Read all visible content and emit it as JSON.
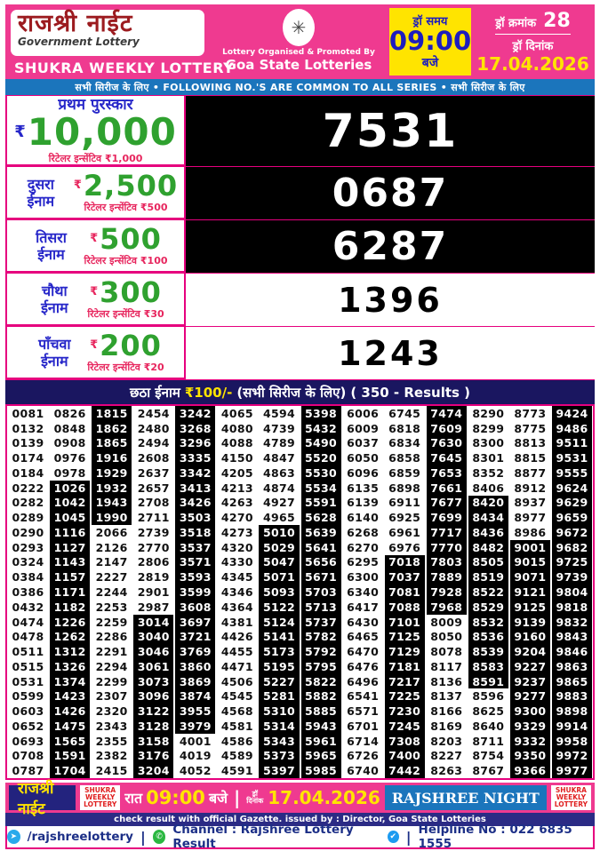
{
  "header": {
    "title": "राजश्री नाईट",
    "subtitle": "Government Lottery",
    "weekly": "SHUKRA WEEKLY LOTTERY",
    "organised_by": "Lottery Organised & Promoted By",
    "organisation": "Goa State Lotteries",
    "draw_time_label": "ड्रॉ समय",
    "draw_time": "09:00",
    "draw_time_suffix": "बजे",
    "draw_no_label": "ड्रॉ क्रमांक",
    "draw_no": "28",
    "draw_date_label": "ड्रॉ दिनांक",
    "draw_date": "17.04.2026"
  },
  "series_banner": "सभी सिरीज के लिए  •  FOLLOWING NO.'S ARE COMMON TO ALL SERIES  • सभी सिरीज के लिए",
  "currency": "₹",
  "prizes": [
    {
      "label": "प्रथम पुरस्कार",
      "amount": "10,000",
      "incentive": "रिटेलर इन्सेंटिव ₹1,000",
      "number": "7531",
      "style": "dark"
    },
    {
      "label": "दुसरा ईनाम",
      "amount": "2,500",
      "incentive": "रिटेलर इन्सेंटिव ₹500",
      "number": "0687",
      "style": "dark"
    },
    {
      "label": "तिसरा ईनाम",
      "amount": "500",
      "incentive": "रिटेलर इन्सेंटिव ₹100",
      "number": "6287",
      "style": "dark"
    },
    {
      "label": "चौथा ईनाम",
      "amount": "300",
      "incentive": "रिटेलर इन्सेंटिव ₹30",
      "number": "1396",
      "style": "light"
    },
    {
      "label": "पाँचवा ईनाम",
      "amount": "200",
      "incentive": "रिटेलर इन्सेंटिव ₹20",
      "number": "1243",
      "style": "light"
    }
  ],
  "sixth_prize": {
    "prefix": "छठा ईनाम",
    "amount": "₹100/-",
    "series_note": "(सभी सिरीज के लिए)",
    "results_note": "( 350 - Results )"
  },
  "results": {
    "rows": [
      [
        "0081",
        "0826",
        "1815",
        "2454",
        "3242",
        "4065",
        "4594",
        "5398",
        "6006",
        "6745",
        "7474",
        "8290",
        "8773",
        "9424"
      ],
      [
        "0132",
        "0848",
        "1862",
        "2480",
        "3268",
        "4080",
        "4739",
        "5432",
        "6009",
        "6818",
        "7609",
        "8299",
        "8775",
        "9486"
      ],
      [
        "0139",
        "0908",
        "1865",
        "2494",
        "3296",
        "4088",
        "4789",
        "5490",
        "6037",
        "6834",
        "7630",
        "8300",
        "8813",
        "9511"
      ],
      [
        "0174",
        "0976",
        "1916",
        "2608",
        "3335",
        "4150",
        "4847",
        "5520",
        "6050",
        "6858",
        "7645",
        "8301",
        "8815",
        "9531"
      ],
      [
        "0184",
        "0978",
        "1929",
        "2637",
        "3342",
        "4205",
        "4863",
        "5530",
        "6096",
        "6859",
        "7653",
        "8352",
        "8877",
        "9555"
      ],
      [
        "0222",
        "1026",
        "1932",
        "2657",
        "3413",
        "4213",
        "4874",
        "5534",
        "6135",
        "6898",
        "7661",
        "8406",
        "8912",
        "9624"
      ],
      [
        "0282",
        "1042",
        "1943",
        "2708",
        "3426",
        "4263",
        "4927",
        "5591",
        "6139",
        "6911",
        "7677",
        "8420",
        "8937",
        "9629"
      ],
      [
        "0289",
        "1045",
        "1990",
        "2711",
        "3503",
        "4270",
        "4965",
        "5628",
        "6140",
        "6925",
        "7699",
        "8434",
        "8977",
        "9659"
      ],
      [
        "0290",
        "1116",
        "2066",
        "2739",
        "3518",
        "4273",
        "5010",
        "5639",
        "6268",
        "6961",
        "7717",
        "8436",
        "8986",
        "9672"
      ],
      [
        "0293",
        "1127",
        "2126",
        "2770",
        "3537",
        "4320",
        "5029",
        "5641",
        "6270",
        "6976",
        "7770",
        "8482",
        "9001",
        "9682"
      ],
      [
        "0324",
        "1143",
        "2147",
        "2806",
        "3571",
        "4330",
        "5047",
        "5656",
        "6295",
        "7018",
        "7803",
        "8505",
        "9015",
        "9725"
      ],
      [
        "0384",
        "1157",
        "2227",
        "2819",
        "3593",
        "4345",
        "5071",
        "5671",
        "6300",
        "7037",
        "7889",
        "8519",
        "9071",
        "9739"
      ],
      [
        "0386",
        "1171",
        "2244",
        "2901",
        "3599",
        "4346",
        "5093",
        "5703",
        "6340",
        "7081",
        "7928",
        "8522",
        "9121",
        "9804"
      ],
      [
        "0432",
        "1182",
        "2253",
        "2987",
        "3608",
        "4364",
        "5122",
        "5713",
        "6417",
        "7088",
        "7968",
        "8529",
        "9125",
        "9818"
      ],
      [
        "0474",
        "1226",
        "2259",
        "3014",
        "3697",
        "4381",
        "5124",
        "5737",
        "6430",
        "7101",
        "8009",
        "8532",
        "9139",
        "9832"
      ],
      [
        "0478",
        "1262",
        "2286",
        "3040",
        "3721",
        "4426",
        "5141",
        "5782",
        "6465",
        "7125",
        "8050",
        "8536",
        "9160",
        "9843"
      ],
      [
        "0511",
        "1312",
        "2291",
        "3046",
        "3769",
        "4455",
        "5173",
        "5792",
        "6470",
        "7129",
        "8078",
        "8539",
        "9204",
        "9846"
      ],
      [
        "0515",
        "1326",
        "2294",
        "3061",
        "3860",
        "4471",
        "5195",
        "5795",
        "6476",
        "7181",
        "8117",
        "8583",
        "9227",
        "9863"
      ],
      [
        "0531",
        "1374",
        "2299",
        "3073",
        "3869",
        "4506",
        "5227",
        "5822",
        "6496",
        "7217",
        "8136",
        "8591",
        "9237",
        "9865"
      ],
      [
        "0599",
        "1423",
        "2307",
        "3096",
        "3874",
        "4545",
        "5281",
        "5882",
        "6541",
        "7225",
        "8137",
        "8596",
        "9277",
        "9883"
      ],
      [
        "0603",
        "1426",
        "2320",
        "3122",
        "3955",
        "4568",
        "5310",
        "5885",
        "6571",
        "7230",
        "8166",
        "8625",
        "9300",
        "9898"
      ],
      [
        "0652",
        "1475",
        "2343",
        "3128",
        "3979",
        "4581",
        "5314",
        "5943",
        "6701",
        "7245",
        "8169",
        "8640",
        "9329",
        "9914"
      ],
      [
        "0693",
        "1565",
        "2355",
        "3158",
        "4001",
        "4586",
        "5343",
        "5961",
        "6714",
        "7308",
        "8203",
        "8711",
        "9332",
        "9958"
      ],
      [
        "0708",
        "1591",
        "2382",
        "3176",
        "4019",
        "4589",
        "5373",
        "5965",
        "6726",
        "7400",
        "8227",
        "8754",
        "9350",
        "9972"
      ],
      [
        "0787",
        "1704",
        "2415",
        "3204",
        "4052",
        "4591",
        "5397",
        "5985",
        "6740",
        "7442",
        "8263",
        "8767",
        "9366",
        "9977"
      ]
    ],
    "black_columns": {
      "2": [
        6,
        25
      ],
      "3": [
        1,
        8
      ],
      "4": [
        15,
        25
      ],
      "5": [
        1,
        22
      ],
      "7": [
        9,
        25
      ],
      "8": [
        1,
        25
      ],
      "10": [
        11,
        25
      ],
      "11": [
        1,
        14
      ],
      "12": [
        7,
        19
      ],
      "13": [
        10,
        25
      ],
      "14": [
        1,
        25
      ]
    }
  },
  "footer": {
    "brand": "राजश्री नाईट",
    "badge_left": "SHUKRA WEEKLY LOTTERY",
    "time_prefix": "रात",
    "time": "09:00",
    "time_suffix": "बजे",
    "date_label_1": "ड्रॉ",
    "date_label_2": "दिनांक",
    "date": "17.04.2026",
    "brand_en": "RAJSHREE NIGHT",
    "badge_right": "SHUKRA WEEKLY LOTTERY",
    "gazette": "check result with official Gazette. issued by : Director, Goa State Lotteries",
    "telegram_handle": "/rajshreelottery",
    "channel": "Channel : Rajshree Lottery Result",
    "helpline": "Helpline No : 022 6835 1555"
  },
  "colors": {
    "pink": "#EF3A90",
    "magenta_border": "#E6007E",
    "banner_blue": "#1B75BC",
    "navy": "#1A1660",
    "maroon_title": "#9C1B1F",
    "green_amount": "#2FA12F",
    "label_blue": "#2626C9",
    "incentive_red": "#E7265E",
    "yellow": "#FFE400",
    "black_cell": "#000000"
  }
}
